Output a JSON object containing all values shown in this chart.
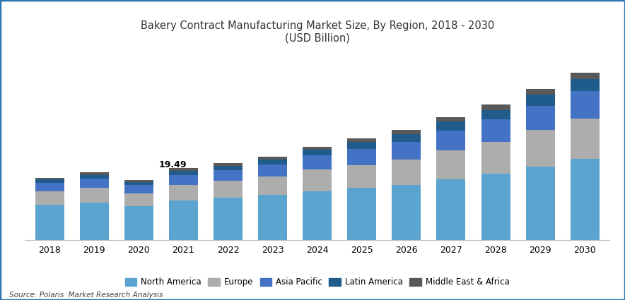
{
  "years": [
    2018,
    2019,
    2020,
    2021,
    2022,
    2023,
    2024,
    2025,
    2026,
    2027,
    2028,
    2029,
    2030
  ],
  "north_america": [
    9.5,
    10.2,
    9.2,
    10.8,
    11.5,
    12.2,
    13.3,
    14.2,
    15.0,
    16.5,
    18.0,
    20.0,
    22.0
  ],
  "europe": [
    3.8,
    4.0,
    3.5,
    4.2,
    4.6,
    5.0,
    5.8,
    6.2,
    6.9,
    7.8,
    8.7,
    9.8,
    11.0
  ],
  "asia_pacific": [
    2.2,
    2.5,
    2.2,
    2.6,
    2.9,
    3.3,
    3.8,
    4.3,
    4.8,
    5.4,
    6.0,
    6.7,
    7.5
  ],
  "latin_america": [
    0.9,
    1.0,
    0.9,
    1.1,
    1.2,
    1.4,
    1.6,
    1.9,
    2.1,
    2.4,
    2.6,
    2.9,
    3.2
  ],
  "mea": [
    0.5,
    0.6,
    0.5,
    0.79,
    0.65,
    0.75,
    0.85,
    1.0,
    1.1,
    1.2,
    1.4,
    1.55,
    1.7
  ],
  "annotation_year": 2021,
  "annotation_value": "19.49",
  "colors": {
    "north_america": "#5BA4D0",
    "europe": "#ADADAD",
    "asia_pacific": "#4472C4",
    "latin_america": "#1F5C8B",
    "mea": "#595959"
  },
  "title_line1": "Bakery Contract Manufacturing Market Size, By Region, 2018 - 2030",
  "title_line2": "(USD Billion)",
  "legend_labels": [
    "North America",
    "Europe",
    "Asia Pacific",
    "Latin America",
    "Middle East & Africa"
  ],
  "source_text": "Source: Polaris  Market Research Analysis",
  "border_color": "#2E75B6",
  "bar_width": 0.65,
  "ylim_max": 50
}
